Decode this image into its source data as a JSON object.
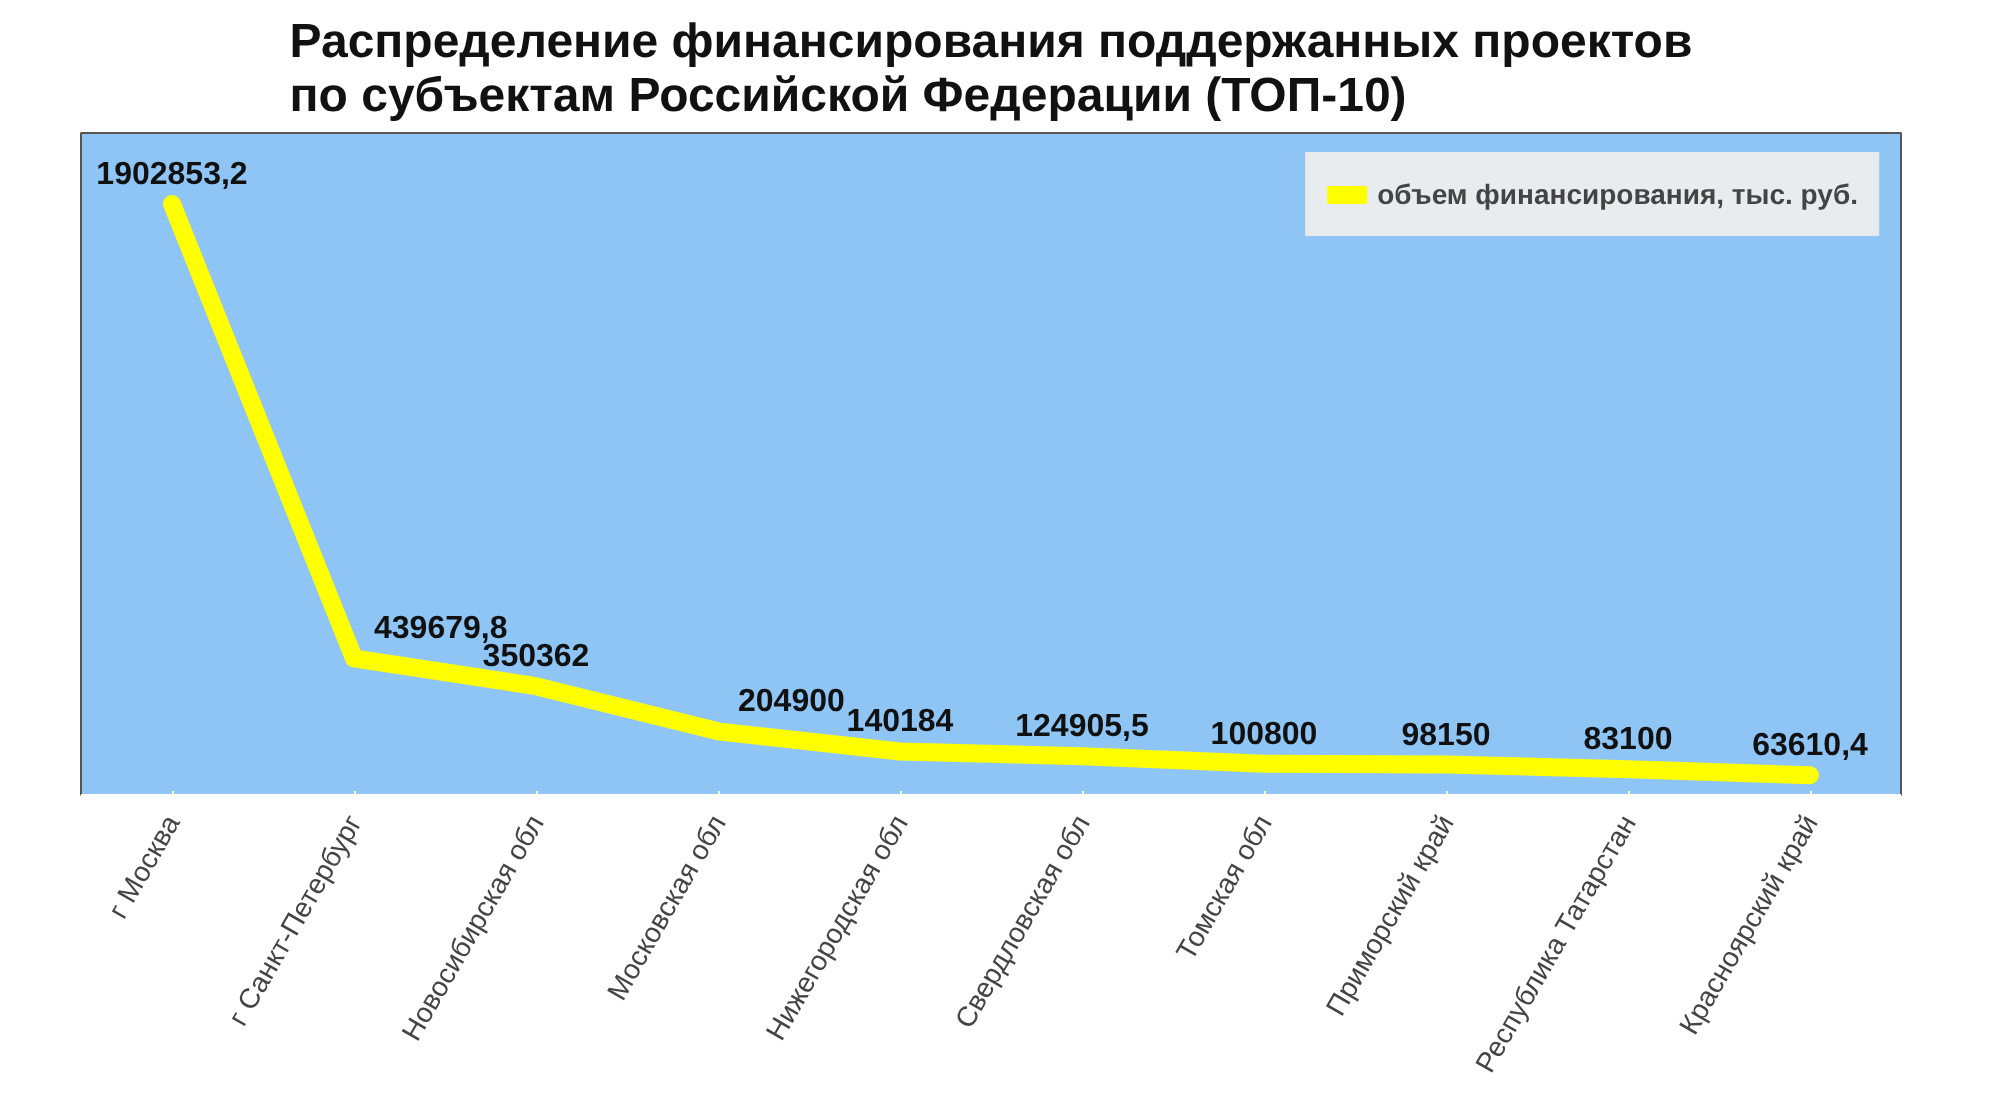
{
  "chart_data": {
    "type": "line",
    "title": "Распределение финансирования поддержанных проектов по субъектам Российской Федерации (ТОП-10)",
    "categories": [
      "г Москва",
      "г Санкт-Петербург",
      "Новосибирская обл",
      "Московская обл",
      "Нижегородская обл",
      "Свердловская обл",
      "Томская обл",
      "Приморский край",
      "Республика Татарстан",
      "Красноярский край"
    ],
    "series": [
      {
        "name": "объем финансирования, тыс. руб.",
        "color": "#ffff00",
        "values": [
          1902853.2,
          439679.8,
          350362,
          204900,
          140184,
          124905.5,
          100800,
          98150,
          83100,
          63610.4
        ],
        "value_labels": [
          "1902853,2",
          "439679,8",
          "350362",
          "204900",
          "140184",
          "124905,5",
          "100800",
          "98150",
          "83100",
          "63610,4"
        ]
      }
    ],
    "legend": "top right",
    "grid": false,
    "marker": "none",
    "line_style": "solid",
    "tick_labels": "x"
  }
}
